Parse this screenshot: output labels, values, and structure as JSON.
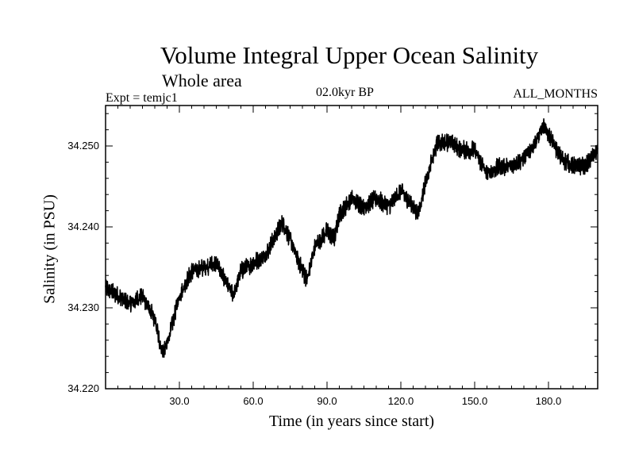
{
  "chart_data": {
    "type": "line",
    "title": "Volume Integral Upper Ocean Salinity",
    "subtitle": "Whole area",
    "experiment": "Expt = temjc1",
    "period": "02.0kyr BP",
    "months": "ALL_MONTHS",
    "xlabel": "Time (in years since start)",
    "ylabel": "Salinity (in PSU)",
    "xlim": [
      0,
      200
    ],
    "ylim": [
      34.22,
      34.255
    ],
    "x_ticks": [
      30,
      60,
      90,
      120,
      150,
      180
    ],
    "x_tick_labels": [
      "30.0",
      "60.0",
      "90.0",
      "120.0",
      "150.0",
      "180.0"
    ],
    "y_ticks": [
      34.22,
      34.23,
      34.24,
      34.25
    ],
    "y_tick_labels": [
      "34.220",
      "34.230",
      "34.240",
      "34.250"
    ],
    "series": [
      {
        "name": "Salinity",
        "color": "#000000",
        "x": [
          0,
          5,
          10,
          15,
          20,
          23,
          25,
          30,
          35,
          40,
          45,
          50,
          52,
          55,
          60,
          65,
          70,
          72,
          75,
          80,
          82,
          85,
          90,
          93,
          95,
          100,
          105,
          110,
          115,
          120,
          125,
          127,
          130,
          135,
          140,
          145,
          150,
          155,
          160,
          165,
          170,
          175,
          178,
          180,
          185,
          190,
          195,
          200
        ],
        "values": [
          34.2325,
          34.2315,
          34.2305,
          34.2315,
          34.2285,
          34.2245,
          34.2255,
          34.2315,
          34.2345,
          34.235,
          34.2355,
          34.2325,
          34.2315,
          34.2345,
          34.2355,
          34.2365,
          34.2395,
          34.2405,
          34.2385,
          34.2345,
          34.2335,
          34.2375,
          34.2395,
          34.2385,
          34.2415,
          34.2435,
          34.2425,
          34.2435,
          34.2425,
          34.2445,
          34.2425,
          34.2415,
          34.2455,
          34.2505,
          34.2505,
          34.2495,
          34.2495,
          34.2465,
          34.2475,
          34.2475,
          34.2485,
          34.2505,
          34.2525,
          34.2515,
          34.2485,
          34.2475,
          34.2475,
          34.2495
        ]
      }
    ]
  }
}
